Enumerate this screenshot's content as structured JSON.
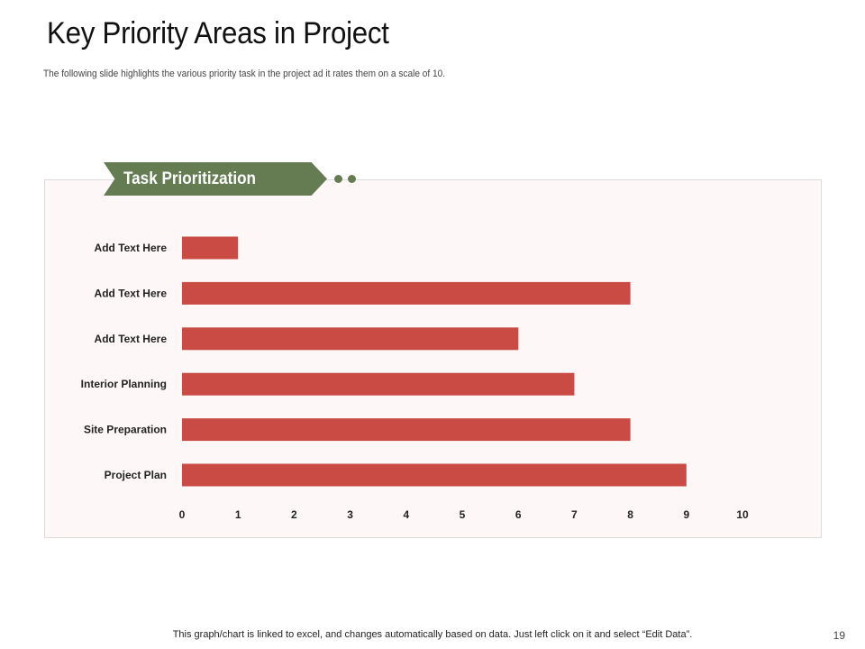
{
  "slide": {
    "title": "Key Priority Areas in Project",
    "subtitle": "The following slide highlights  the various priority  task  in the project ad it rates them on a scale of 10.",
    "banner_label": "Task Prioritization",
    "footer": "This graph/chart is linked to excel,  and changes automatically based on data. Just left click on it and select “Edit Data”.",
    "page_number": "19"
  },
  "colors": {
    "bar": "#c94b43",
    "banner": "#657b52"
  },
  "chart_data": {
    "type": "bar",
    "orientation": "horizontal",
    "categories": [
      "Add Text Here",
      "Add Text Here",
      "Add Text Here",
      "Interior Planning",
      "Site Preparation",
      "Project Plan"
    ],
    "values": [
      1,
      8,
      6,
      7,
      8,
      9
    ],
    "xlim": [
      0,
      10
    ],
    "xticks": [
      0,
      1,
      2,
      3,
      4,
      5,
      6,
      7,
      8,
      9,
      10
    ],
    "grid": false
  }
}
